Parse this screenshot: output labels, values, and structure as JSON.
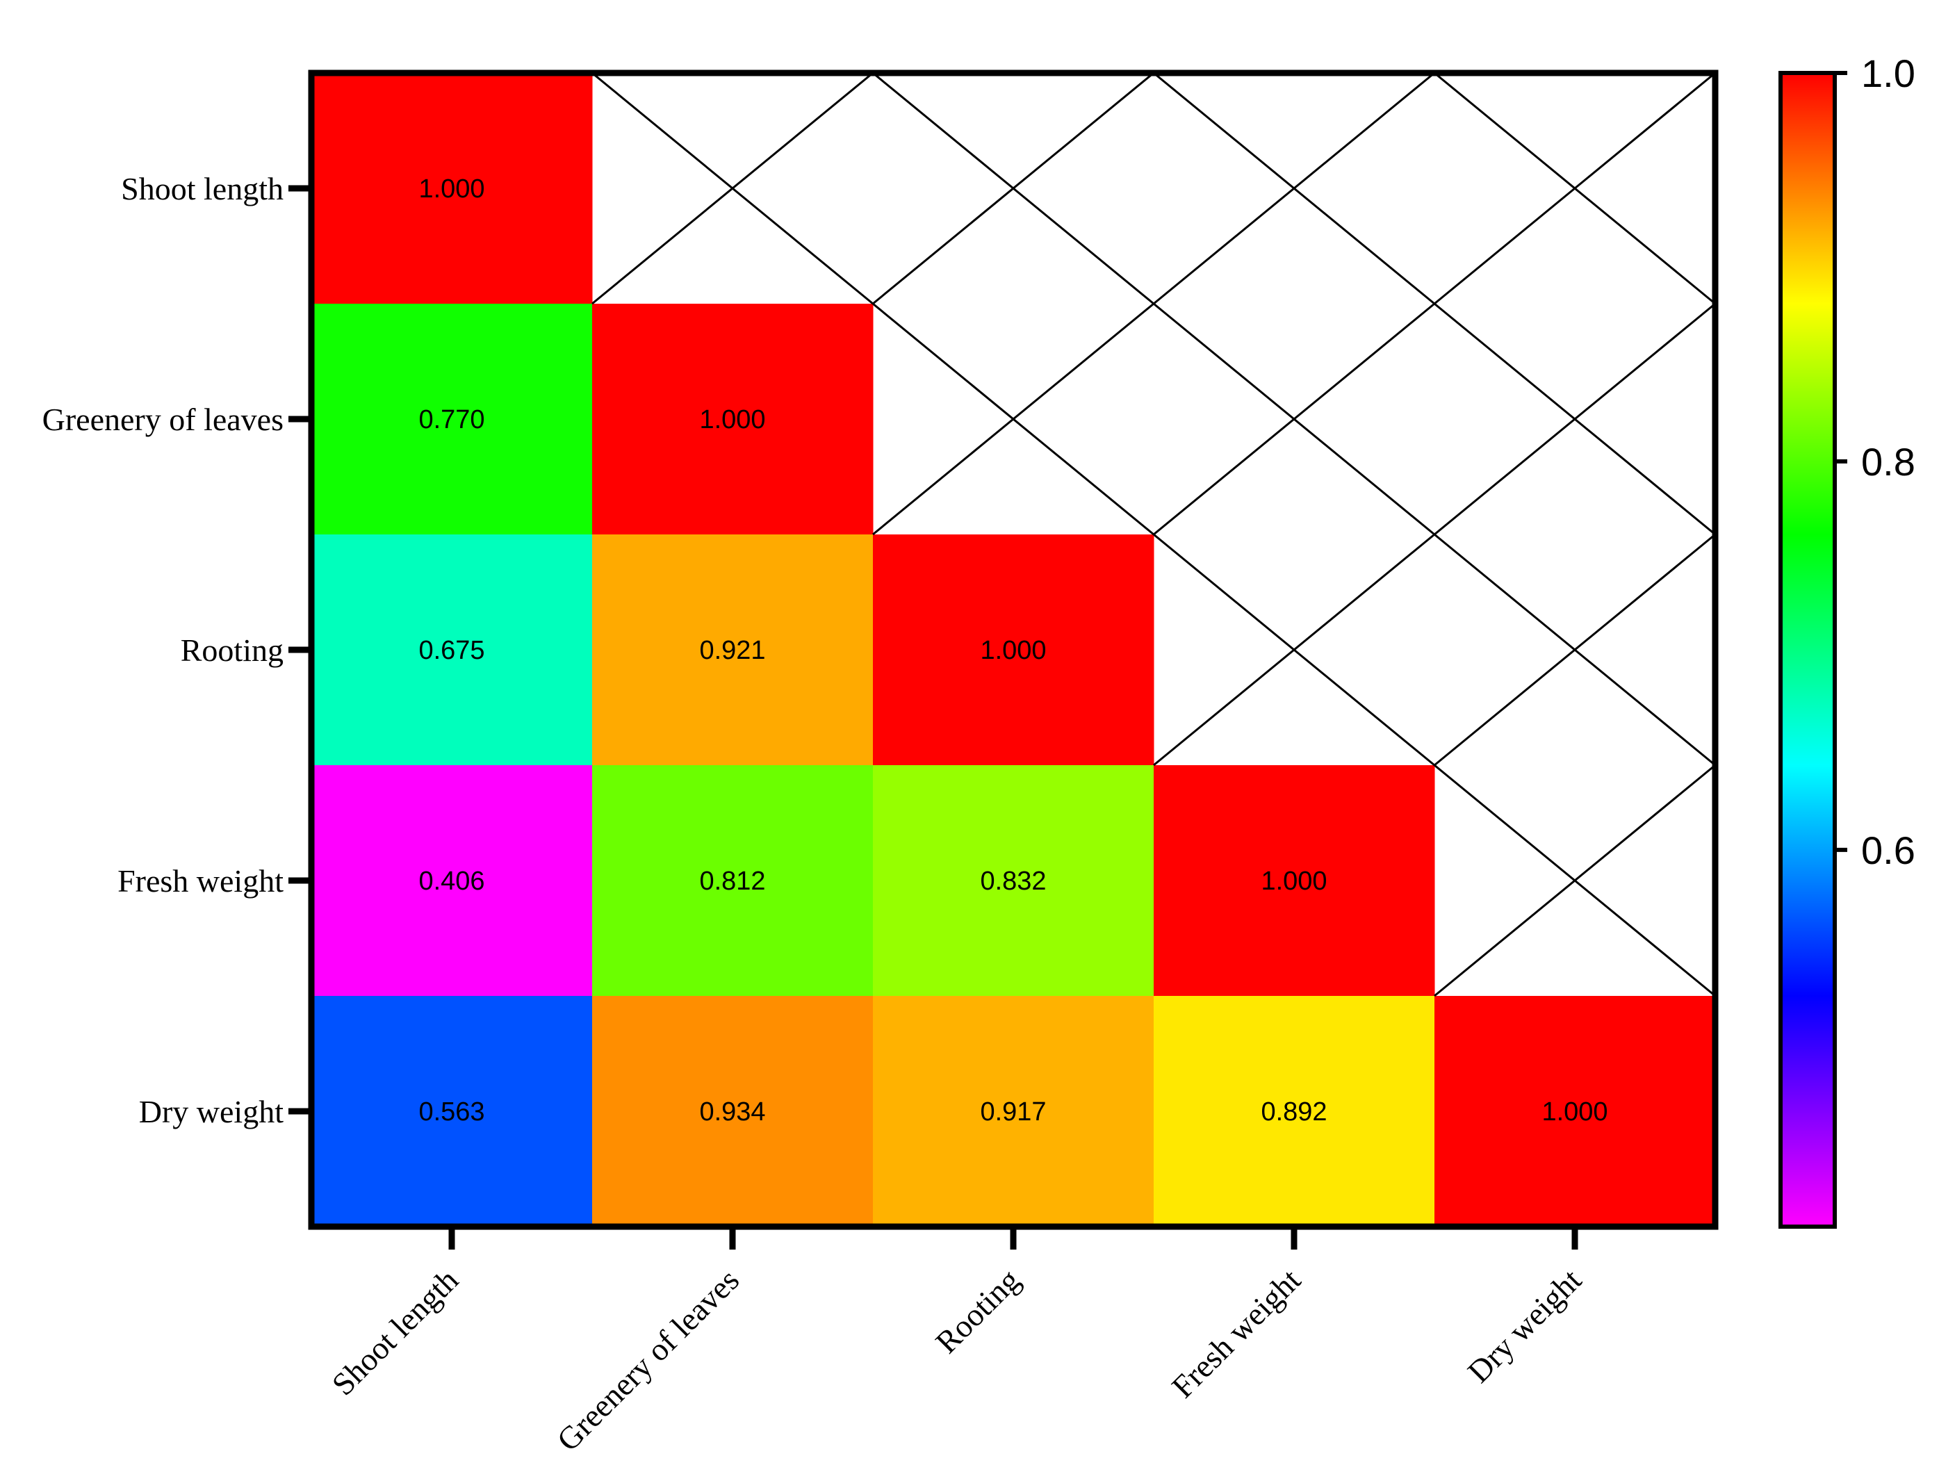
{
  "chart_data": {
    "type": "heatmap",
    "title": "",
    "xlabel": "",
    "ylabel": "",
    "rows": [
      "Shoot length",
      "Greenery of leaves",
      "Rooting",
      "Fresh weight",
      "Dry weight"
    ],
    "columns": [
      "Shoot length",
      "Greenery of leaves",
      "Rooting",
      "Fresh weight",
      "Dry weight"
    ],
    "values": [
      [
        1.0,
        null,
        null,
        null,
        null
      ],
      [
        0.77,
        1.0,
        null,
        null,
        null
      ],
      [
        0.675,
        0.921,
        1.0,
        null,
        null
      ],
      [
        0.406,
        0.812,
        0.832,
        1.0,
        null
      ],
      [
        0.563,
        0.934,
        0.917,
        0.892,
        1.0
      ]
    ],
    "value_labels": [
      [
        "1.000",
        "",
        "",
        "",
        ""
      ],
      [
        "0.770",
        "1.000",
        "",
        "",
        ""
      ],
      [
        "0.675",
        "0.921",
        "1.000",
        "",
        ""
      ],
      [
        "0.406",
        "0.812",
        "0.832",
        "1.000",
        ""
      ],
      [
        "0.563",
        "0.934",
        "0.917",
        "0.892",
        "1.000"
      ]
    ],
    "colorbar": {
      "range": [
        0.406,
        1.0
      ],
      "ticks": [
        0.6,
        0.8,
        1.0
      ],
      "tick_labels": [
        "0.6",
        "0.8",
        "1.0"
      ],
      "placement": "right",
      "colormap": [
        "#ff00ff",
        "#8000ff",
        "#0000ff",
        "#0080ff",
        "#00ffff",
        "#00ff80",
        "#00ff00",
        "#80ff00",
        "#ffff00",
        "#ff8000",
        "#ff0000"
      ]
    },
    "missing_cell_style": "crossed-out"
  }
}
